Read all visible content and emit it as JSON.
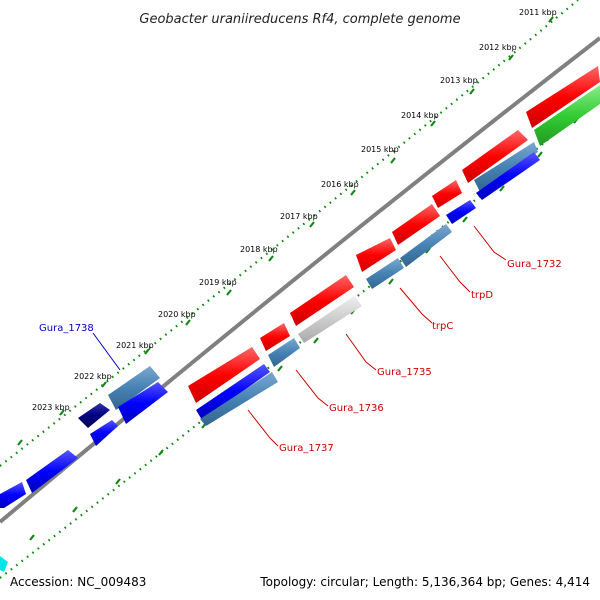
{
  "title": "Geobacter uraniireducens Rf4, complete genome",
  "accession": "Accession: NC_009483",
  "topology": "Topology: circular; Length: 5,136,364 bp; Genes: 4,414",
  "kbp_ticks": [
    "2011 kbp",
    "2012 kbp",
    "2013 kbp",
    "2014 kbp",
    "2015 kbp",
    "2016 kbp",
    "2017 kbp",
    "2018 kbp",
    "2019 kbp",
    "2020 kbp",
    "2021 kbp",
    "2022 kbp",
    "2023 kbp"
  ],
  "gene_labels": {
    "gura_1732": "Gura_1732",
    "trpD": "trpD",
    "trpC": "trpC",
    "gura_1735": "Gura_1735",
    "gura_1736": "Gura_1736",
    "gura_1737": "Gura_1737",
    "gura_1738": "Gura_1738"
  },
  "colors": {
    "red": "#ff0000",
    "blue": "#0000ff",
    "steelblue": "#4682b4",
    "green": "#33cc33",
    "grey": "#c8c8c8",
    "navy": "#000080",
    "cyan": "#00e5e5",
    "backbone": "#808080",
    "tick_green": "#118811",
    "label_red": "#cc0000",
    "label_blue": "#0000cc"
  }
}
